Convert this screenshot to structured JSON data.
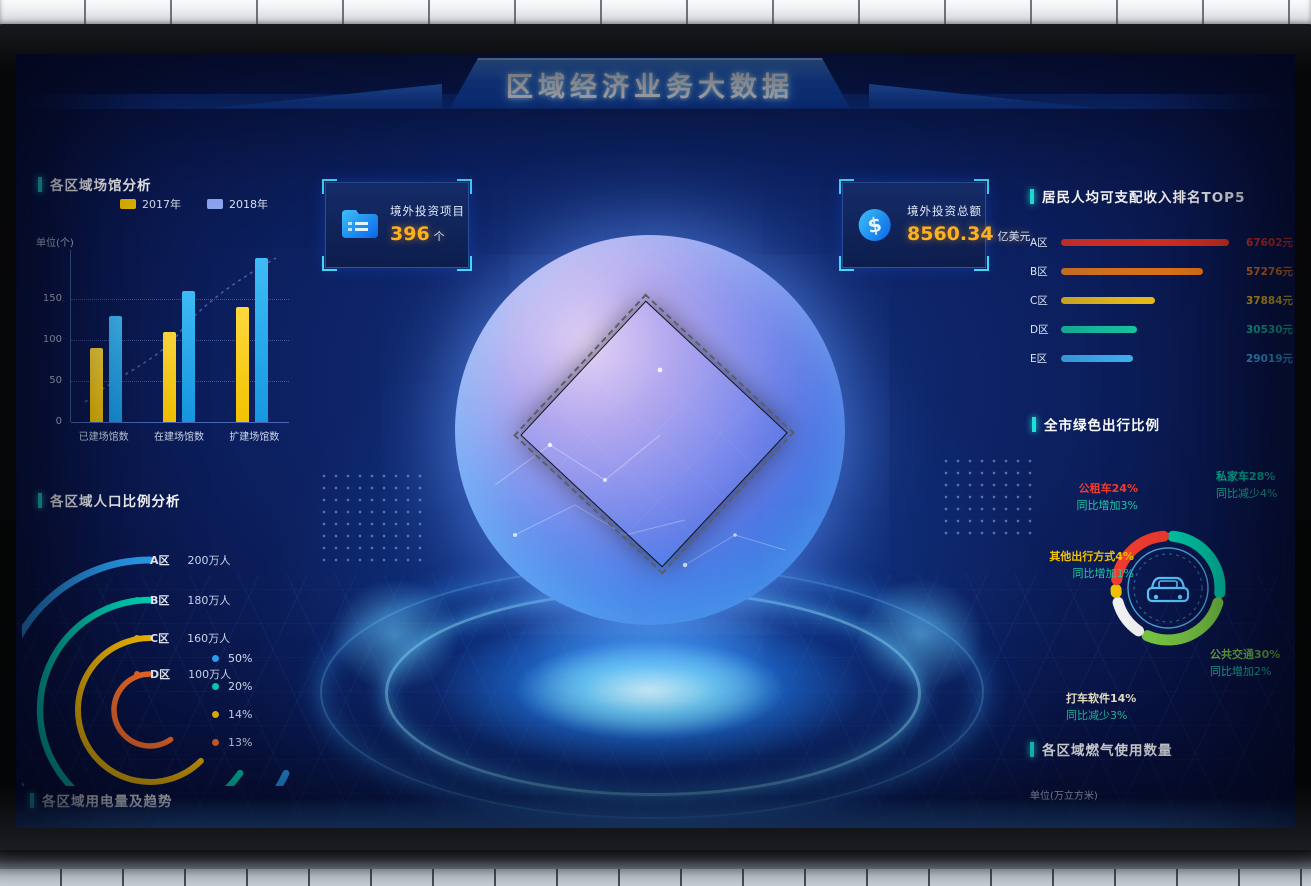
{
  "header": {
    "title": "区域经济业务大数据"
  },
  "badges": {
    "projects": {
      "icon": "folder-icon",
      "label": "境外投资项目",
      "value": "396",
      "unit": "个"
    },
    "investment": {
      "icon": "dollar-icon",
      "label": "境外投资总额",
      "value": "8560.34",
      "unit": "亿美元"
    }
  },
  "sections": {
    "electricity_title": "各区域用电量及趋势"
  },
  "colors": {
    "accent_cyan": "#1fe0d8",
    "value_orange": "#ffb41e",
    "screen_bg": "#0c2060"
  },
  "chart_data": [
    {
      "id": "venue-analysis",
      "type": "bar",
      "title": "各区域场馆分析",
      "unit_label": "单位(个)",
      "categories": [
        "已建场馆数",
        "在建场馆数",
        "扩建场馆数"
      ],
      "series": [
        {
          "name": "2017年",
          "color": "#f2c200",
          "color_top": "#ffd83d",
          "legend_color": "#f2c200",
          "values": [
            90,
            110,
            140
          ]
        },
        {
          "name": "2018年",
          "color": "#1697e0",
          "color_top": "#3fbcf7",
          "legend_color": "#8fa8f5",
          "values": [
            130,
            160,
            200
          ]
        }
      ],
      "yticks": [
        0,
        50,
        100,
        150
      ],
      "ylim": [
        0,
        210
      ],
      "grid": "dotted-horizontal",
      "legend_position": "top"
    },
    {
      "id": "population-ratio",
      "type": "arc",
      "title": "各区域人口比例分析",
      "items": [
        {
          "label": "A区",
          "value": "200万人",
          "pct": "50%",
          "color": "#2b9df0"
        },
        {
          "label": "B区",
          "value": "180万人",
          "pct": "20%",
          "color": "#00d2b4"
        },
        {
          "label": "C区",
          "value": "160万人",
          "pct": "14%",
          "color": "#f2b800"
        },
        {
          "label": "D区",
          "value": "100万人",
          "pct": "13%",
          "color": "#f06a28"
        }
      ]
    },
    {
      "id": "income-top5",
      "type": "hbar",
      "title": "居民人均可支配收入排名TOP5",
      "items": [
        {
          "label": "A区",
          "value": 67602,
          "display": "67602元",
          "color": "#e8321e"
        },
        {
          "label": "B区",
          "value": 57276,
          "display": "57276元",
          "color": "#f07d16"
        },
        {
          "label": "C区",
          "value": 37884,
          "display": "37884元",
          "color": "#f2c218"
        },
        {
          "label": "D区",
          "value": 30530,
          "display": "30530元",
          "color": "#16c8a0"
        },
        {
          "label": "E区",
          "value": 29019,
          "display": "29019元",
          "color": "#3fb2f0"
        }
      ]
    },
    {
      "id": "green-travel",
      "type": "donut",
      "title": "全市绿色出行比例",
      "center_icon": "car-icon",
      "legend_position": "around",
      "segments": [
        {
          "label": "私家车28%",
          "sub": "同比减少4%",
          "value": 28,
          "color": "#00c9a7",
          "pos": "top-right"
        },
        {
          "label": "公共交通30%",
          "sub": "同比增加2%",
          "value": 30,
          "color": "#7ac943",
          "pos": "bottom-right"
        },
        {
          "label": "打车软件14%",
          "sub": "同比减少3%",
          "value": 14,
          "color": "#f2f2f2",
          "pos": "bottom-left"
        },
        {
          "label": "其他出行方式4%",
          "sub": "同比增加1%",
          "value": 4,
          "color": "#f2c200",
          "pos": "left"
        },
        {
          "label": "公租车24%",
          "sub": "同比增加3%",
          "value": 24,
          "color": "#f23c2e",
          "pos": "top-left"
        }
      ]
    },
    {
      "id": "gas-usage",
      "type": "section",
      "title": "各区域燃气使用数量",
      "unit_label": "单位(万立方米)"
    }
  ]
}
